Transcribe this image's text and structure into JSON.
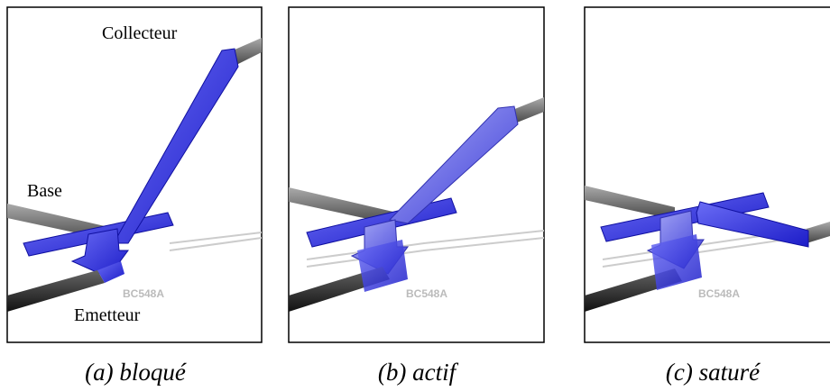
{
  "panels": [
    {
      "caption": "(a) bloqué",
      "collector_label": "Collecteur",
      "base_label": "Base",
      "emitter_label": "Emetteur",
      "chip": "BC548A"
    },
    {
      "caption": "(b) actif",
      "chip": "BC548A"
    },
    {
      "caption": "(c) saturé",
      "chip": "BC548A"
    }
  ]
}
